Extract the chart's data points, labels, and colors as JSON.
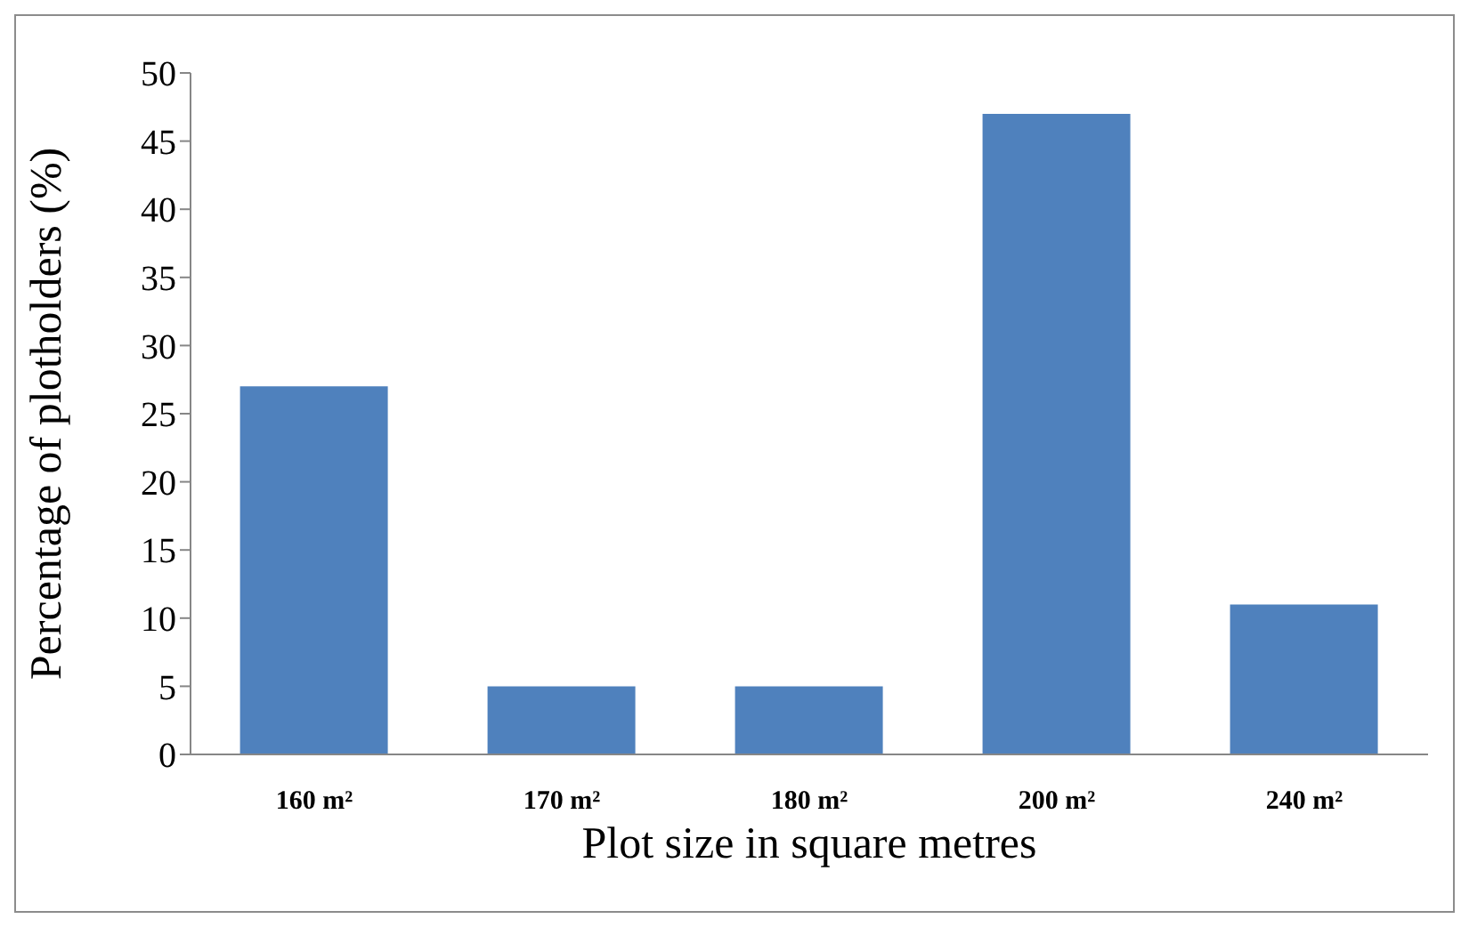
{
  "chart_data": {
    "type": "bar",
    "xlabel": "Plot size in square metres",
    "ylabel": "Percentage of plotholders (%)",
    "categories": [
      "160 m²",
      "170 m²",
      "180 m²",
      "200 m²",
      "240 m²"
    ],
    "values": [
      27,
      5,
      5,
      47,
      11
    ],
    "color": "#4f81bd",
    "ylim": [
      0,
      50
    ],
    "yticks": [
      0,
      5,
      10,
      15,
      20,
      25,
      30,
      35,
      40,
      45,
      50
    ],
    "grid": false,
    "legend": false
  }
}
